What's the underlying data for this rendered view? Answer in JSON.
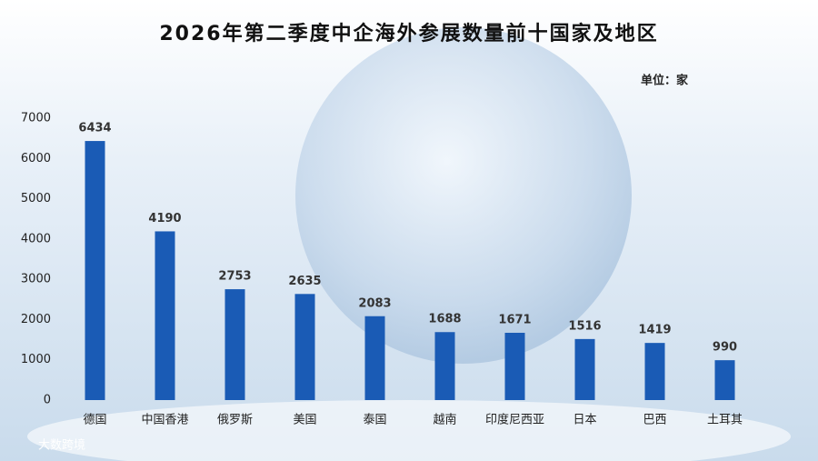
{
  "chart_data": {
    "type": "bar",
    "title": "2026年第二季度中企海外参展数量前十国家及地区",
    "unit": "单位：家",
    "watermark": "大数跨境",
    "categories": [
      "德国",
      "中国香港",
      "俄罗斯",
      "美国",
      "泰国",
      "越南",
      "印度尼西亚",
      "日本",
      "巴西",
      "土耳其"
    ],
    "values": [
      6434,
      4190,
      2753,
      2635,
      2083,
      1688,
      1671,
      1516,
      1419,
      990
    ],
    "color": "#1a5bb5",
    "ylim": [
      0,
      7000
    ],
    "yticks": [
      0,
      1000,
      2000,
      3000,
      4000,
      5000,
      6000,
      7000
    ],
    "grid": false
  }
}
